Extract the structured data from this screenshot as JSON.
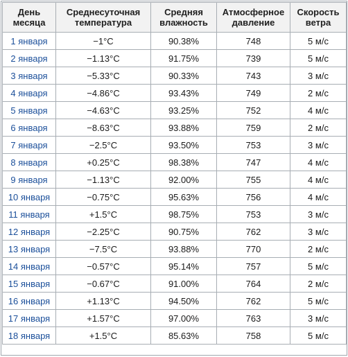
{
  "table": {
    "headers": [
      {
        "line1": "День",
        "line2": "месяца"
      },
      {
        "line1": "Среднесуточная",
        "line2": "температура"
      },
      {
        "line1": "Средняя",
        "line2": "влажность"
      },
      {
        "line1": "Атмосферное",
        "line2": "давление"
      },
      {
        "line1": "Скорость",
        "line2": "ветра"
      }
    ],
    "rows": [
      {
        "day": "1 января",
        "temp": "−1°C",
        "humidity": "90.38%",
        "pressure": "748",
        "wind": "5 м/с"
      },
      {
        "day": "2 января",
        "temp": "−1.13°C",
        "humidity": "91.75%",
        "pressure": "739",
        "wind": "5 м/с"
      },
      {
        "day": "3 января",
        "temp": "−5.33°C",
        "humidity": "90.33%",
        "pressure": "743",
        "wind": "3 м/с"
      },
      {
        "day": "4 января",
        "temp": "−4.86°C",
        "humidity": "93.43%",
        "pressure": "749",
        "wind": "2 м/с"
      },
      {
        "day": "5 января",
        "temp": "−4.63°C",
        "humidity": "93.25%",
        "pressure": "752",
        "wind": "4 м/с"
      },
      {
        "day": "6 января",
        "temp": "−8.63°C",
        "humidity": "93.88%",
        "pressure": "759",
        "wind": "2 м/с"
      },
      {
        "day": "7 января",
        "temp": "−2.5°C",
        "humidity": "93.50%",
        "pressure": "753",
        "wind": "3 м/с"
      },
      {
        "day": "8 января",
        "temp": "+0.25°C",
        "humidity": "98.38%",
        "pressure": "747",
        "wind": "4 м/с"
      },
      {
        "day": "9 января",
        "temp": "−1.13°C",
        "humidity": "92.00%",
        "pressure": "755",
        "wind": "4 м/с"
      },
      {
        "day": "10 января",
        "temp": "−0.75°C",
        "humidity": "95.63%",
        "pressure": "756",
        "wind": "4 м/с"
      },
      {
        "day": "11 января",
        "temp": "+1.5°C",
        "humidity": "98.75%",
        "pressure": "753",
        "wind": "3 м/с"
      },
      {
        "day": "12 января",
        "temp": "−2.25°C",
        "humidity": "90.75%",
        "pressure": "762",
        "wind": "3 м/с"
      },
      {
        "day": "13 января",
        "temp": "−7.5°C",
        "humidity": "93.88%",
        "pressure": "770",
        "wind": "2 м/с"
      },
      {
        "day": "14 января",
        "temp": "−0.57°C",
        "humidity": "95.14%",
        "pressure": "757",
        "wind": "5 м/с"
      },
      {
        "day": "15 января",
        "temp": "−0.67°C",
        "humidity": "91.00%",
        "pressure": "764",
        "wind": "2 м/с"
      },
      {
        "day": "16 января",
        "temp": "+1.13°C",
        "humidity": "94.50%",
        "pressure": "762",
        "wind": "5 м/с"
      },
      {
        "day": "17 января",
        "temp": "+1.57°C",
        "humidity": "97.00%",
        "pressure": "763",
        "wind": "3 м/с"
      },
      {
        "day": "18 января",
        "temp": "+1.5°C",
        "humidity": "85.63%",
        "pressure": "758",
        "wind": "5 м/с"
      }
    ]
  },
  "colors": {
    "header_bg": "#f2f2f2",
    "border": "#a7adb3",
    "day_link": "#1b4f9a",
    "text": "#1a1a1a"
  }
}
